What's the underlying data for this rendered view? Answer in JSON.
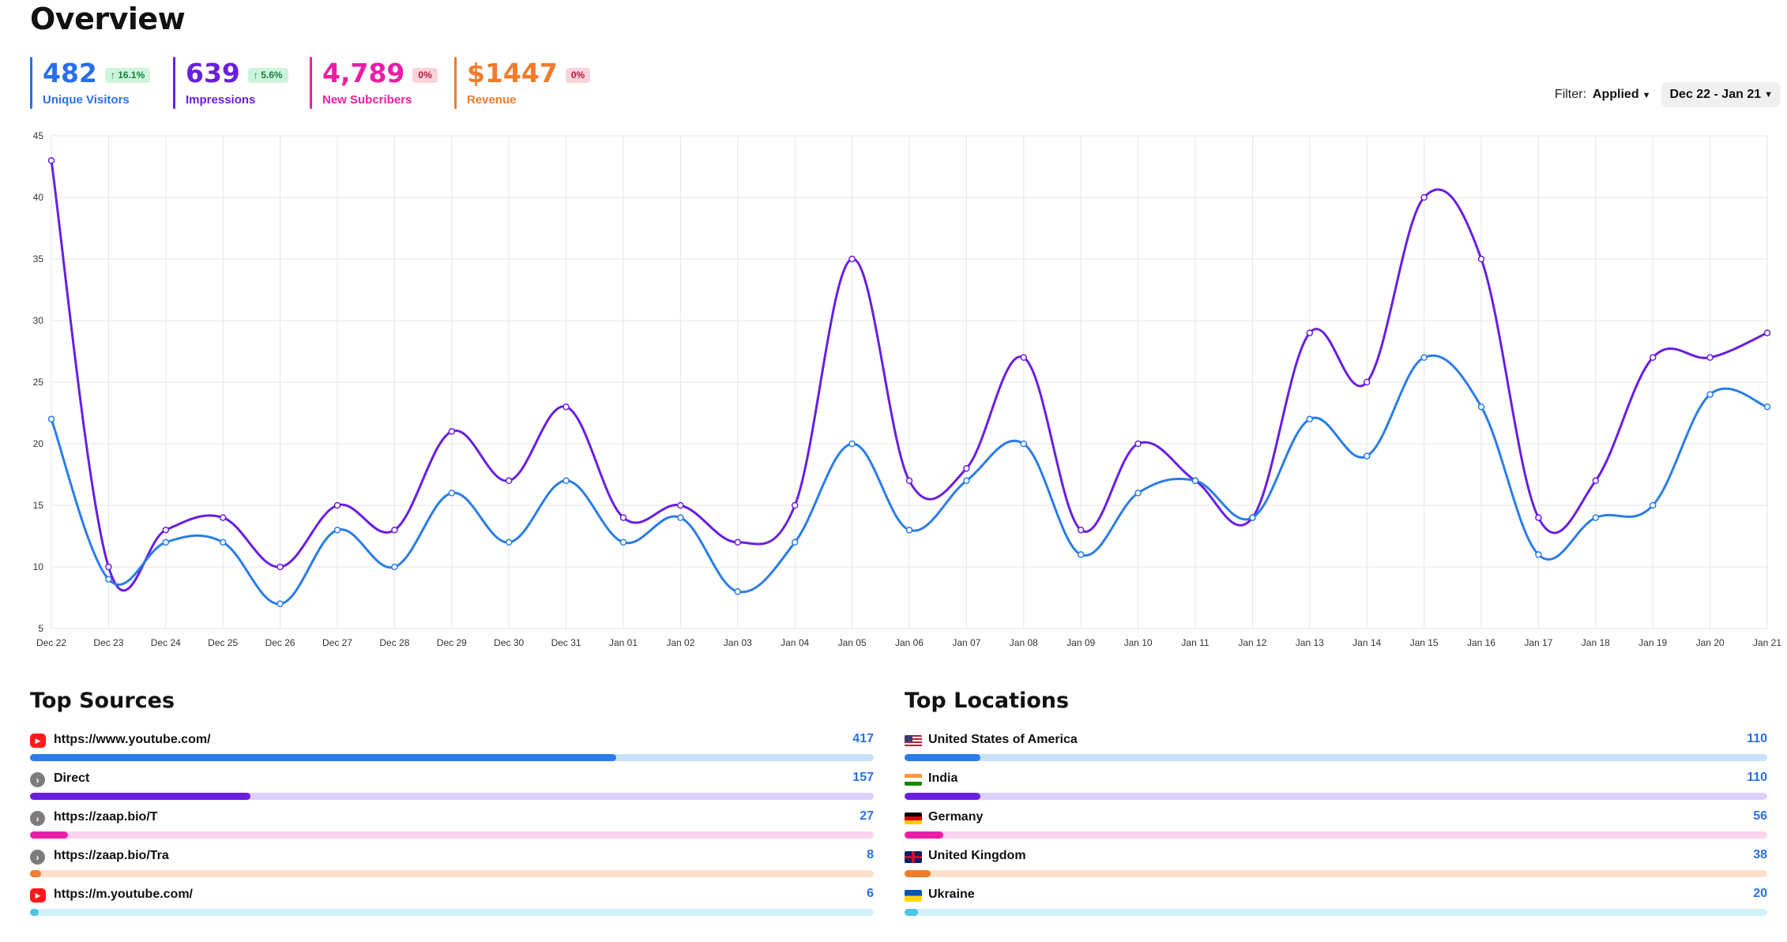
{
  "page": {
    "title": "Overview"
  },
  "stats": [
    {
      "value": "482",
      "label": "Unique Visitors",
      "badge": "↑ 16.1%",
      "badge_type": "up",
      "color": "#2a6fe8"
    },
    {
      "value": "639",
      "label": "Impressions",
      "badge": "↑ 5.6%",
      "badge_type": "up",
      "color": "#6a1fe0"
    },
    {
      "value": "4,789",
      "label": "New Subcribers",
      "badge": "0%",
      "badge_type": "flat",
      "color": "#ea1ea6"
    },
    {
      "value": "$1447",
      "label": "Revenue",
      "badge": "0%",
      "badge_type": "flat",
      "color": "#f07c2c"
    }
  ],
  "filter": {
    "label": "Filter:",
    "value": "Applied",
    "date_range": "Dec 22 - Jan 21",
    "chevron_icon": "chevron-down-icon"
  },
  "chart_data": {
    "type": "line",
    "x": [
      "Dec 22",
      "Dec 23",
      "Dec 24",
      "Dec 25",
      "Dec 26",
      "Dec 27",
      "Dec 28",
      "Dec 29",
      "Dec 30",
      "Dec 31",
      "Jan 01",
      "Jan 02",
      "Jan 03",
      "Jan 04",
      "Jan 05",
      "Jan 06",
      "Jan 07",
      "Jan 08",
      "Jan 09",
      "Jan 10",
      "Jan 11",
      "Jan 12",
      "Jan 13",
      "Jan 14",
      "Jan 15",
      "Jan 16",
      "Jan 17",
      "Jan 18",
      "Jan 19",
      "Jan 20",
      "Jan 21"
    ],
    "ylim": [
      5,
      45
    ],
    "yticks": [
      5,
      10,
      15,
      20,
      25,
      30,
      35,
      40,
      45
    ],
    "grid": true,
    "series": [
      {
        "color": "#6a1fe0",
        "values": [
          43,
          10,
          13,
          14,
          10,
          15,
          13,
          21,
          17,
          23,
          14,
          15,
          12,
          15,
          35,
          17,
          18,
          27,
          13,
          20,
          17,
          14,
          29,
          25,
          40,
          35,
          14,
          17,
          27,
          27,
          29
        ]
      },
      {
        "color": "#2a7de8",
        "values": [
          22,
          9,
          12,
          12,
          7,
          13,
          10,
          16,
          12,
          17,
          12,
          14,
          8,
          12,
          20,
          13,
          17,
          20,
          11,
          16,
          17,
          14,
          22,
          19,
          27,
          23,
          11,
          14,
          15,
          24,
          23
        ]
      }
    ]
  },
  "top_sources": {
    "title": "Top Sources",
    "items": [
      {
        "name": "https://www.youtube.com/",
        "count": "417",
        "value": 417,
        "icon": "youtube-icon",
        "track": "#c9e2fb",
        "fill": "#2a7de8"
      },
      {
        "name": "Direct",
        "count": "157",
        "value": 157,
        "icon": "direct-icon",
        "track": "#ddd0fa",
        "fill": "#6a1fe0"
      },
      {
        "name": "https://zaap.bio/T",
        "count": "27",
        "value": 27,
        "icon": "link-icon",
        "track": "#fcd3ef",
        "fill": "#ea1ea6"
      },
      {
        "name": "https://zaap.bio/Tra",
        "count": "8",
        "value": 8,
        "icon": "link-icon",
        "track": "#fde0cc",
        "fill": "#f07c2c"
      },
      {
        "name": "https://m.youtube.com/",
        "count": "6",
        "value": 6,
        "icon": "youtube-icon",
        "track": "#d2f2fb",
        "fill": "#4bc4ea"
      }
    ],
    "max": 600
  },
  "top_locations": {
    "title": "Top Locations",
    "items": [
      {
        "name": "United States of America",
        "count": "110",
        "value": 110,
        "icon": "us-flag-icon",
        "track": "#c9e2fb",
        "fill": "#2a7de8"
      },
      {
        "name": "India",
        "count": "110",
        "value": 110,
        "icon": "india-flag-icon",
        "track": "#ddd0fa",
        "fill": "#6a1fe0"
      },
      {
        "name": "Germany",
        "count": "56",
        "value": 56,
        "icon": "germany-flag-icon",
        "track": "#fcd3ef",
        "fill": "#ea1ea6"
      },
      {
        "name": "United Kingdom",
        "count": "38",
        "value": 38,
        "icon": "uk-flag-icon",
        "track": "#fde0cc",
        "fill": "#f07c2c"
      },
      {
        "name": "Ukraine",
        "count": "20",
        "value": 20,
        "icon": "ukraine-flag-icon",
        "track": "#d2f2fb",
        "fill": "#4bc4ea"
      }
    ],
    "max": 1250
  }
}
